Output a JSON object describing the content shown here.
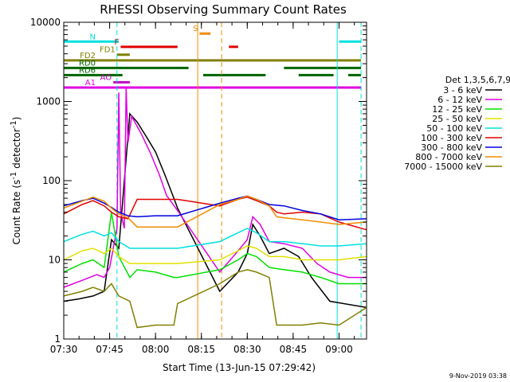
{
  "chart_data": {
    "type": "line",
    "title": "RHESSI Observing Summary Count Rates",
    "xlabel": "Start Time (13-Jun-15 07:29:42)",
    "ylabel_main": "Count Rate (s",
    "ylabel_sup1": "-1",
    "ylabel_mid": " detector",
    "ylabel_sup2": "-1",
    "ylabel_end": ")",
    "yscale": "log",
    "ylim": [
      1,
      10000
    ],
    "xlim": [
      7.5,
      9.15
    ],
    "x_units": "hours UT",
    "x_ticks": [
      {
        "value": 7.5,
        "label": "07:30"
      },
      {
        "value": 7.75,
        "label": "07:45"
      },
      {
        "value": 8.0,
        "label": "08:00"
      },
      {
        "value": 8.25,
        "label": "08:15"
      },
      {
        "value": 8.5,
        "label": "08:30"
      },
      {
        "value": 8.75,
        "label": "08:45"
      },
      {
        "value": 9.0,
        "label": "09:00"
      }
    ],
    "y_ticks": [
      {
        "value": 1,
        "label": "1"
      },
      {
        "value": 10,
        "label": "10"
      },
      {
        "value": 100,
        "label": "100"
      },
      {
        "value": 1000,
        "label": "1000"
      },
      {
        "value": 10000,
        "label": "10000"
      }
    ],
    "legend_title": "Det 1,3,5,6,7,9",
    "legend_position": "right",
    "series": [
      {
        "name": "3 - 6 keV",
        "color": "#000000",
        "points": [
          [
            7.5,
            3
          ],
          [
            7.58,
            3.2
          ],
          [
            7.66,
            3.5
          ],
          [
            7.72,
            4
          ],
          [
            7.76,
            18
          ],
          [
            7.8,
            14
          ],
          [
            7.86,
            700
          ],
          [
            7.9,
            550
          ],
          [
            7.95,
            360
          ],
          [
            8.0,
            230
          ],
          [
            8.05,
            120
          ],
          [
            8.1,
            60
          ],
          [
            8.12,
            45
          ],
          [
            8.35,
            4
          ],
          [
            8.45,
            7
          ],
          [
            8.5,
            12
          ],
          [
            8.53,
            28
          ],
          [
            8.57,
            20
          ],
          [
            8.62,
            12
          ],
          [
            8.7,
            14
          ],
          [
            8.78,
            11
          ],
          [
            8.85,
            6
          ],
          [
            8.95,
            3
          ],
          [
            9.15,
            2.5
          ]
        ]
      },
      {
        "name": "6 - 12 keV",
        "color": "#e000e0",
        "points": [
          [
            7.5,
            4.5
          ],
          [
            7.6,
            5.5
          ],
          [
            7.68,
            6.5
          ],
          [
            7.72,
            6
          ],
          [
            7.75,
            8
          ],
          [
            7.79,
            25
          ],
          [
            7.8,
            1300
          ],
          [
            7.81,
            40
          ],
          [
            7.83,
            25
          ],
          [
            7.84,
            1500
          ],
          [
            7.85,
            300
          ],
          [
            7.87,
            650
          ],
          [
            7.92,
            400
          ],
          [
            7.97,
            230
          ],
          [
            8.02,
            120
          ],
          [
            8.06,
            65
          ],
          [
            8.12,
            42
          ],
          [
            8.35,
            7
          ],
          [
            8.45,
            13
          ],
          [
            8.5,
            18
          ],
          [
            8.53,
            35
          ],
          [
            8.57,
            28
          ],
          [
            8.62,
            17
          ],
          [
            8.7,
            16
          ],
          [
            8.8,
            14
          ],
          [
            8.88,
            9
          ],
          [
            8.95,
            7
          ],
          [
            9.05,
            6
          ],
          [
            9.15,
            6
          ]
        ]
      },
      {
        "name": "12 - 25 keV",
        "color": "#00e000",
        "points": [
          [
            7.5,
            7
          ],
          [
            7.6,
            9
          ],
          [
            7.66,
            10
          ],
          [
            7.72,
            8
          ],
          [
            7.76,
            40
          ],
          [
            7.8,
            11
          ],
          [
            7.86,
            6
          ],
          [
            7.9,
            7.5
          ],
          [
            8.0,
            7
          ],
          [
            8.1,
            6
          ],
          [
            8.12,
            6
          ],
          [
            8.35,
            7.5
          ],
          [
            8.45,
            10
          ],
          [
            8.5,
            12
          ],
          [
            8.55,
            11
          ],
          [
            8.62,
            8
          ],
          [
            8.7,
            7.5
          ],
          [
            8.8,
            7
          ],
          [
            8.9,
            6
          ],
          [
            9.0,
            5
          ],
          [
            9.15,
            5
          ]
        ]
      },
      {
        "name": "25 - 50 keV",
        "color": "#e0e000",
        "points": [
          [
            7.5,
            10
          ],
          [
            7.6,
            13
          ],
          [
            7.66,
            14
          ],
          [
            7.72,
            12
          ],
          [
            7.76,
            14
          ],
          [
            7.8,
            11
          ],
          [
            7.86,
            9
          ],
          [
            7.9,
            9
          ],
          [
            8.0,
            9
          ],
          [
            8.1,
            9
          ],
          [
            8.12,
            9
          ],
          [
            8.35,
            10
          ],
          [
            8.45,
            13
          ],
          [
            8.5,
            15
          ],
          [
            8.55,
            14
          ],
          [
            8.62,
            11
          ],
          [
            8.7,
            11
          ],
          [
            8.8,
            10
          ],
          [
            8.9,
            10
          ],
          [
            9.0,
            10
          ],
          [
            9.15,
            11
          ]
        ]
      },
      {
        "name": "50 - 100 keV",
        "color": "#00e0e0",
        "points": [
          [
            7.5,
            17
          ],
          [
            7.6,
            21
          ],
          [
            7.66,
            23
          ],
          [
            7.72,
            20
          ],
          [
            7.76,
            22
          ],
          [
            7.8,
            17
          ],
          [
            7.86,
            14
          ],
          [
            7.9,
            14
          ],
          [
            8.0,
            14
          ],
          [
            8.1,
            14
          ],
          [
            8.12,
            14
          ],
          [
            8.35,
            17
          ],
          [
            8.45,
            22
          ],
          [
            8.5,
            25
          ],
          [
            8.55,
            22
          ],
          [
            8.62,
            17
          ],
          [
            8.7,
            17
          ],
          [
            8.8,
            16
          ],
          [
            8.9,
            15
          ],
          [
            9.0,
            15
          ],
          [
            9.15,
            16
          ]
        ]
      },
      {
        "name": "100 - 300 keV",
        "color": "#e00000",
        "points": [
          [
            7.5,
            38
          ],
          [
            7.6,
            50
          ],
          [
            7.66,
            56
          ],
          [
            7.72,
            48
          ],
          [
            7.76,
            40
          ],
          [
            7.8,
            35
          ],
          [
            7.85,
            33
          ],
          [
            7.9,
            58
          ],
          [
            8.0,
            58
          ],
          [
            8.1,
            58
          ],
          [
            8.12,
            58
          ],
          [
            8.35,
            48
          ],
          [
            8.45,
            58
          ],
          [
            8.5,
            62
          ],
          [
            8.55,
            56
          ],
          [
            8.62,
            48
          ],
          [
            8.66,
            40
          ],
          [
            8.7,
            38
          ],
          [
            8.8,
            40
          ],
          [
            8.9,
            38
          ],
          [
            9.0,
            30
          ],
          [
            9.15,
            24
          ]
        ]
      },
      {
        "name": "300 - 800 keV",
        "color": "#0000e0",
        "points": [
          [
            7.5,
            48
          ],
          [
            7.6,
            56
          ],
          [
            7.66,
            60
          ],
          [
            7.72,
            52
          ],
          [
            7.76,
            46
          ],
          [
            7.8,
            40
          ],
          [
            7.85,
            36
          ],
          [
            7.9,
            35
          ],
          [
            8.0,
            36
          ],
          [
            8.1,
            36
          ],
          [
            8.12,
            36
          ],
          [
            8.35,
            52
          ],
          [
            8.45,
            60
          ],
          [
            8.5,
            64
          ],
          [
            8.55,
            58
          ],
          [
            8.62,
            50
          ],
          [
            8.7,
            48
          ],
          [
            8.8,
            42
          ],
          [
            8.9,
            38
          ],
          [
            9.0,
            32
          ],
          [
            9.15,
            33
          ]
        ]
      },
      {
        "name": "800 - 7000 keV",
        "color": "#f08c00",
        "points": [
          [
            7.5,
            45
          ],
          [
            7.6,
            55
          ],
          [
            7.66,
            62
          ],
          [
            7.72,
            55
          ],
          [
            7.76,
            45
          ],
          [
            7.8,
            38
          ],
          [
            7.85,
            34
          ],
          [
            7.9,
            26
          ],
          [
            8.0,
            26
          ],
          [
            8.1,
            26
          ],
          [
            8.12,
            26
          ],
          [
            8.35,
            50
          ],
          [
            8.45,
            58
          ],
          [
            8.5,
            64
          ],
          [
            8.55,
            58
          ],
          [
            8.62,
            48
          ],
          [
            8.66,
            35
          ],
          [
            8.7,
            34
          ],
          [
            8.8,
            32
          ],
          [
            8.9,
            30
          ],
          [
            9.0,
            28
          ],
          [
            9.15,
            30
          ]
        ]
      },
      {
        "name": "7000 - 15000 keV",
        "color": "#808000",
        "points": [
          [
            7.5,
            3.5
          ],
          [
            7.6,
            4
          ],
          [
            7.66,
            4.5
          ],
          [
            7.72,
            4
          ],
          [
            7.76,
            5
          ],
          [
            7.8,
            3.5
          ],
          [
            7.86,
            3
          ],
          [
            7.9,
            1.4
          ],
          [
            8.0,
            1.5
          ],
          [
            8.1,
            1.5
          ],
          [
            8.12,
            2.8
          ],
          [
            8.35,
            5
          ],
          [
            8.45,
            7
          ],
          [
            8.5,
            7.5
          ],
          [
            8.55,
            7
          ],
          [
            8.62,
            6
          ],
          [
            8.66,
            1.5
          ],
          [
            8.7,
            1.5
          ],
          [
            8.8,
            1.5
          ],
          [
            8.9,
            1.6
          ],
          [
            9.0,
            1.5
          ],
          [
            9.15,
            2.5
          ]
        ]
      }
    ],
    "flag_bars": [
      {
        "label": "N",
        "color": "#00e0e0",
        "level": 5700,
        "segments": [
          [
            7.5,
            7.8
          ],
          [
            9.0,
            9.12
          ]
        ]
      },
      {
        "label": "F",
        "color": "#e00000",
        "level": 4900,
        "segments": [
          [
            7.81,
            8.12
          ],
          [
            8.4,
            8.45
          ]
        ]
      },
      {
        "label": "S",
        "color": "#f08c00",
        "level": 7200,
        "segments": [
          [
            8.24,
            8.3
          ]
        ]
      },
      {
        "label": "FD1",
        "color": "#808000",
        "level": 3900,
        "segments": [
          [
            7.79,
            7.86
          ]
        ]
      },
      {
        "label": "FD2",
        "color": "#808000",
        "level": 3300,
        "segments": [
          [
            7.5,
            9.12
          ]
        ]
      },
      {
        "label": "RD0",
        "color": "#006400",
        "level": 2650,
        "segments": [
          [
            7.5,
            8.18
          ],
          [
            8.7,
            9.12
          ]
        ]
      },
      {
        "label": "RD6",
        "color": "#006400",
        "level": 2150,
        "segments": [
          [
            7.5,
            7.82
          ],
          [
            8.26,
            8.6
          ],
          [
            8.78,
            8.97
          ],
          [
            9.05,
            9.12
          ]
        ]
      },
      {
        "label": "AO",
        "color": "#c000c0",
        "level": 1750,
        "segments": [
          [
            7.77,
            7.86
          ]
        ]
      },
      {
        "label": "A1",
        "color": "#e000e0",
        "level": 1500,
        "segments": [
          [
            7.5,
            9.12
          ]
        ]
      }
    ],
    "vertical_markers": [
      {
        "x": 7.5,
        "color": "#00e0e0",
        "style": "solid"
      },
      {
        "x": 7.79,
        "color": "#00e0e0",
        "style": "dashed"
      },
      {
        "x": 8.23,
        "color": "#f08c00",
        "style": "solid"
      },
      {
        "x": 8.36,
        "color": "#f08c00",
        "style": "dashed"
      },
      {
        "x": 8.99,
        "color": "#00e0e0",
        "style": "solid"
      },
      {
        "x": 9.12,
        "color": "#00e0e0",
        "style": "dashed"
      }
    ]
  },
  "footer": {
    "timestamp": "9-Nov-2019 03:38"
  }
}
